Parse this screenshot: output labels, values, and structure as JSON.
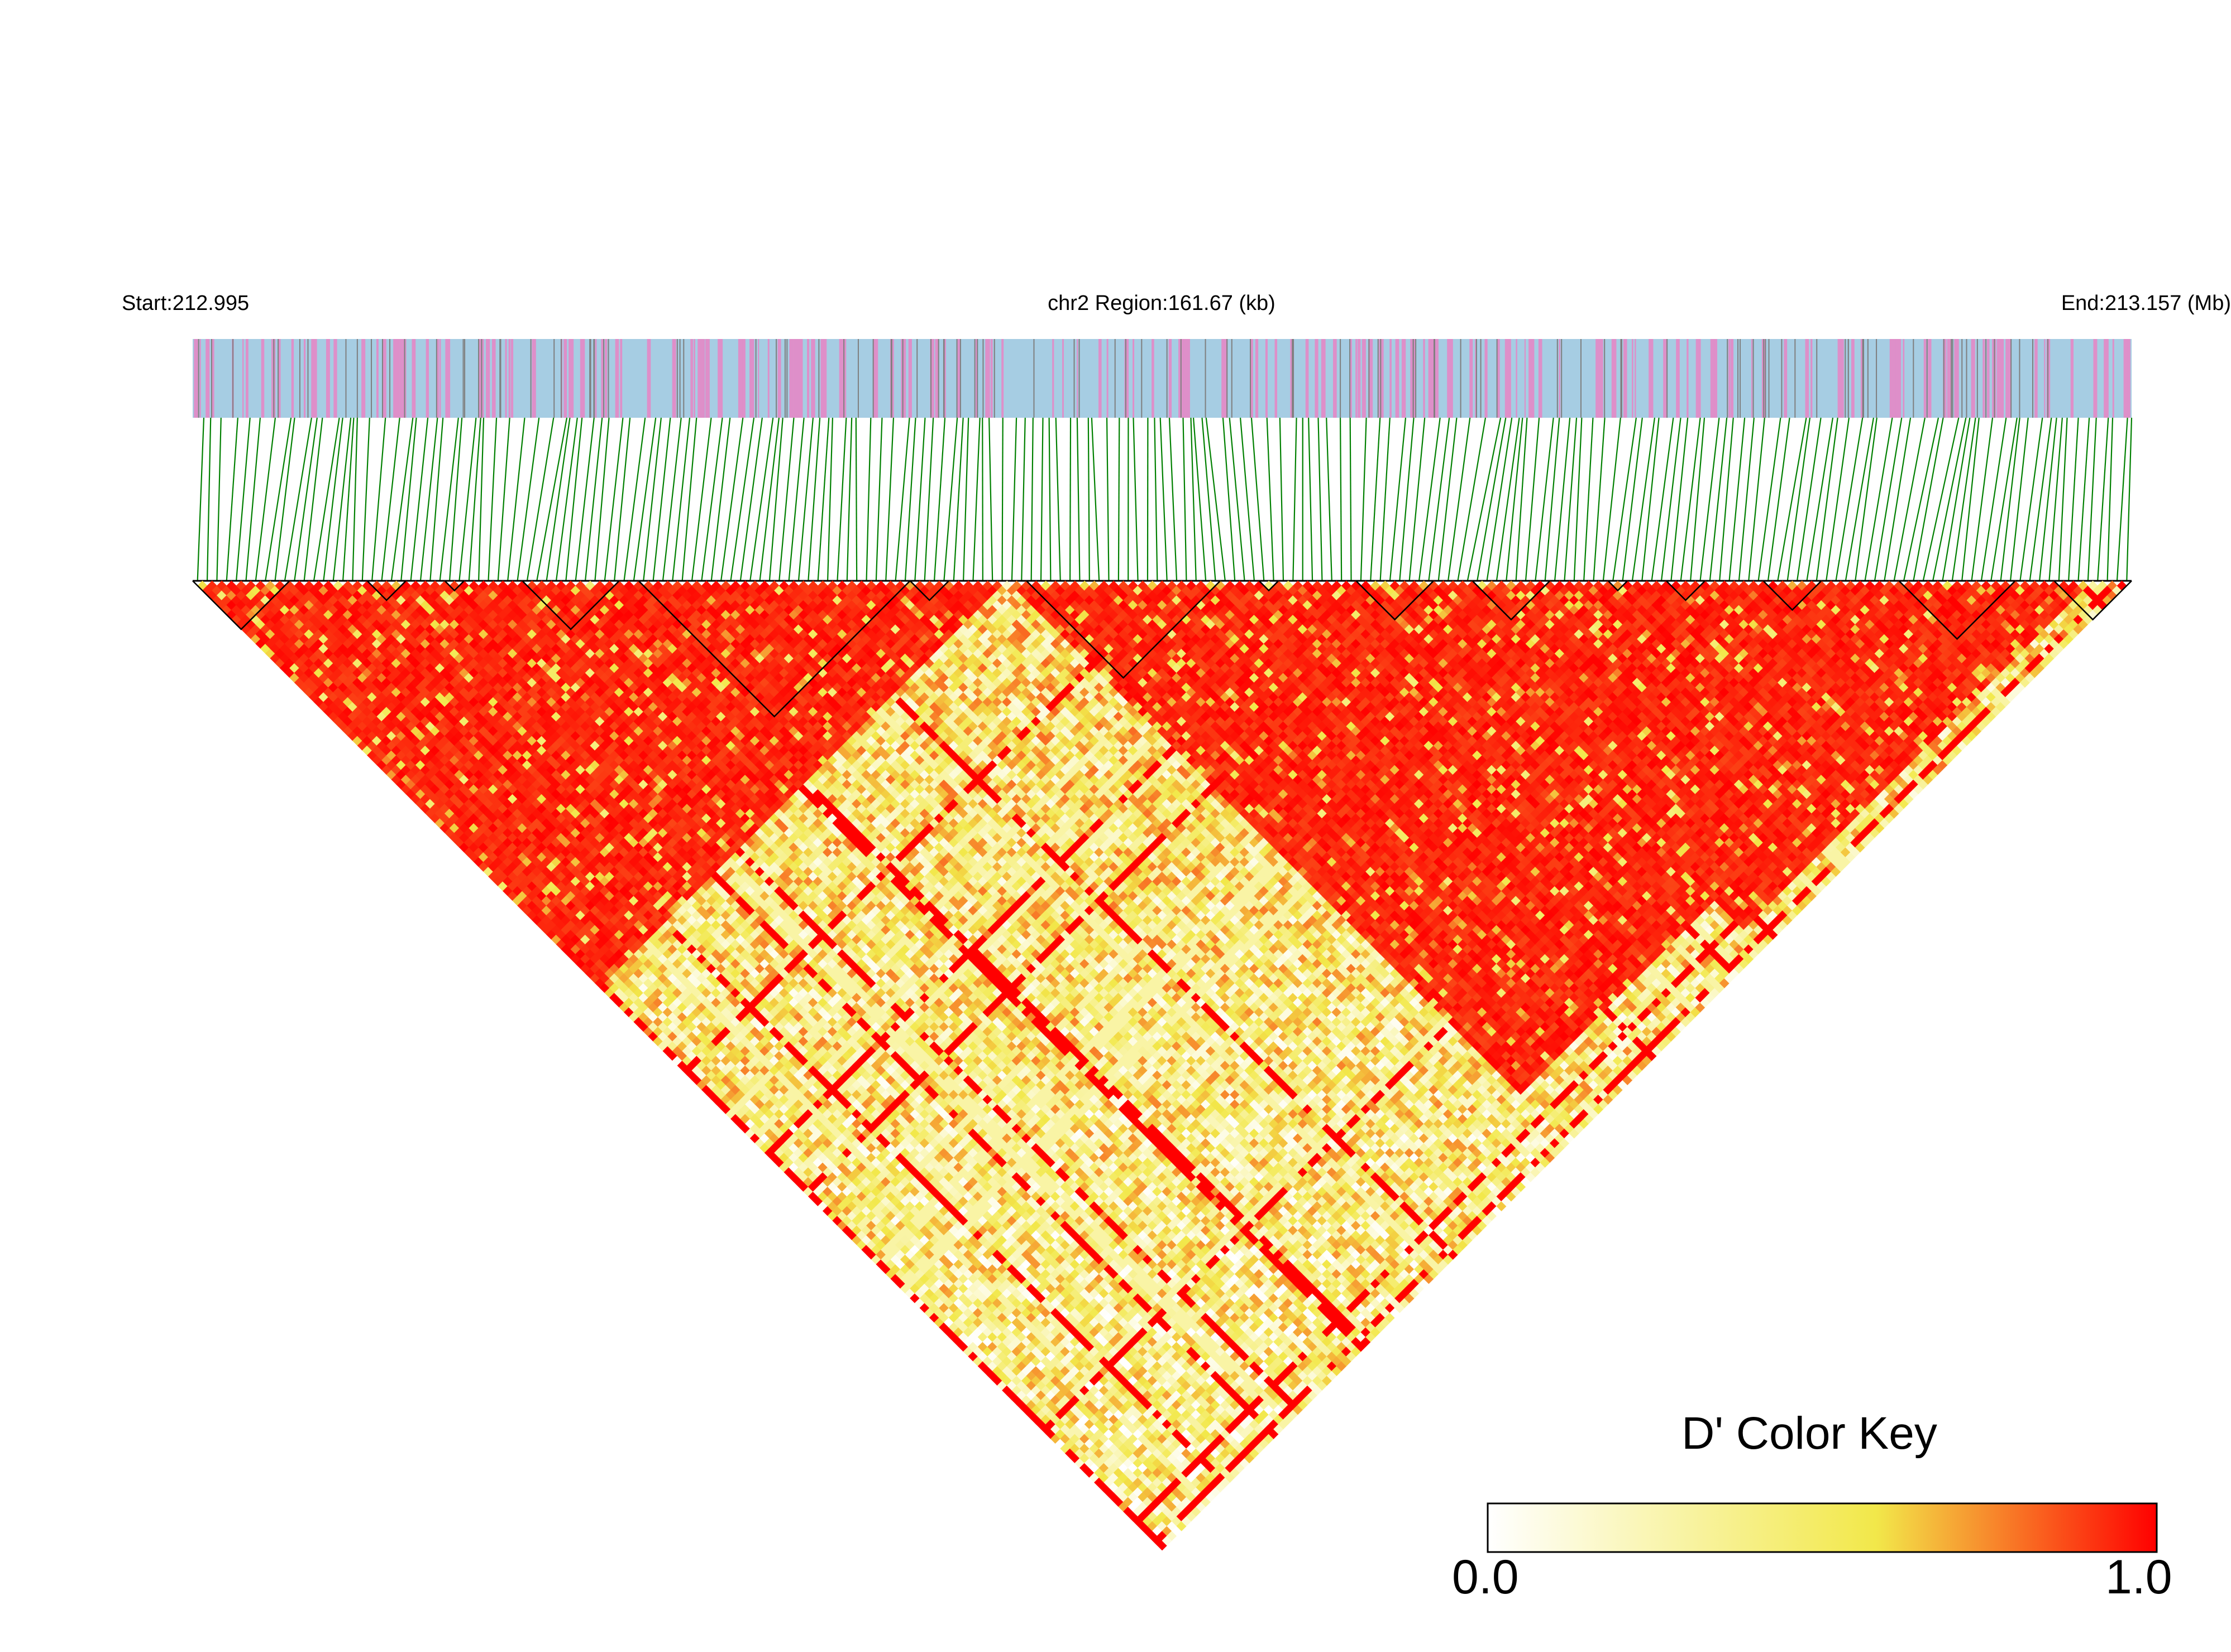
{
  "chart_data": {
    "type": "heatmap",
    "subtype": "linkage-disequilibrium-triangle",
    "chromosome": "chr2",
    "region_label": "chr2 Region:161.67 (kb)",
    "start_label": "Start:212.995",
    "end_label": "End:213.157 (Mb)",
    "start_mb": 212.995,
    "end_mb": 213.157,
    "region_kb": 161.67,
    "n_snps_approx": 330,
    "metric": "D'",
    "color_key": {
      "title": "D' Color Key",
      "min_label": "0.0",
      "max_label": "1.0",
      "min": 0.0,
      "max": 1.0,
      "colors": [
        "#ffffff",
        "#f2e84a",
        "#ff0000"
      ]
    },
    "track_colors": {
      "gene_track": "#a6cde3",
      "exon_marks": "#de8fc9",
      "variant_marks": "#7f7f7f",
      "snp_connectors": "#008000",
      "block_outline": "#000000"
    },
    "haplotype_blocks_fraction": [
      [
        0.0,
        0.05
      ],
      [
        0.09,
        0.11
      ],
      [
        0.13,
        0.14
      ],
      [
        0.17,
        0.22
      ],
      [
        0.23,
        0.37
      ],
      [
        0.37,
        0.39
      ],
      [
        0.43,
        0.53
      ],
      [
        0.55,
        0.56
      ],
      [
        0.6,
        0.64
      ],
      [
        0.66,
        0.7
      ],
      [
        0.73,
        0.74
      ],
      [
        0.76,
        0.78
      ],
      [
        0.81,
        0.84
      ],
      [
        0.88,
        0.94
      ],
      [
        0.96,
        1.0
      ]
    ],
    "d_prime_regions": [
      {
        "from": 0.0,
        "to": 0.42,
        "level": 0.93
      },
      {
        "from": 0.42,
        "to": 0.95,
        "level": 0.92
      },
      {
        "from": 0.62,
        "to": 0.98,
        "level": 0.88
      }
    ],
    "background_d_prime": 0.45
  }
}
